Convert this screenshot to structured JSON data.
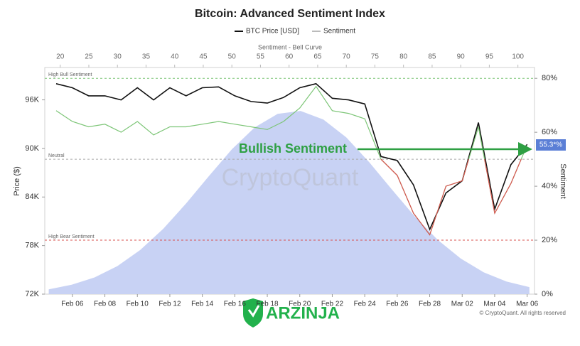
{
  "chart_data": {
    "type": "line",
    "title": "Bitcoin: Advanced Sentiment Index",
    "categories": [
      null,
      "Feb 06",
      null,
      "Feb 08",
      null,
      "Feb 10",
      null,
      "Feb 12",
      null,
      "Feb 14",
      null,
      "Feb 16",
      null,
      "Feb 18",
      null,
      "Feb 20",
      null,
      "Feb 22",
      null,
      "Feb 24",
      null,
      "Feb 26",
      null,
      "Feb 28",
      null,
      "Mar 02",
      null,
      "Mar 04",
      null,
      "Mar 06"
    ],
    "y_label": "Price ($)",
    "ylim": [
      72000,
      100000
    ],
    "yticks": [
      {
        "value": 72000,
        "label": "72K"
      },
      {
        "value": 78000,
        "label": "78K"
      },
      {
        "value": 84000,
        "label": "84K"
      },
      {
        "value": 90000,
        "label": "90K"
      },
      {
        "value": 96000,
        "label": "96K"
      }
    ],
    "y2_label": "Sentiment",
    "y2lim": [
      0,
      84
    ],
    "y2ticks": [
      {
        "value": 0,
        "label": "0%"
      },
      {
        "value": 20,
        "label": "20%"
      },
      {
        "value": 40,
        "label": "40%"
      },
      {
        "value": 60,
        "label": "60%"
      },
      {
        "value": 80,
        "label": "80%"
      }
    ],
    "series": [
      {
        "name": "BTC Price [USD]",
        "color": "#111111",
        "values": [
          98000,
          97500,
          96500,
          96500,
          96000,
          97500,
          96000,
          97500,
          96500,
          97500,
          97600,
          96500,
          95800,
          95600,
          96300,
          97500,
          98000,
          96200,
          96000,
          95500,
          89000,
          88500,
          85500,
          80000,
          84500,
          86000,
          93200,
          82500,
          88000,
          90500
        ]
      },
      {
        "name": "Sentiment",
        "color": "#7cc576",
        "legend_color": "#bbbbbb",
        "low_color": "#d9534f",
        "axis": "y2",
        "values": [
          68,
          64,
          62,
          63,
          60,
          64,
          59,
          62,
          62,
          63,
          64,
          63,
          62,
          61,
          64,
          69,
          77,
          68,
          67,
          65,
          50,
          44,
          30,
          22,
          40,
          42,
          62,
          30,
          41,
          55.3
        ],
        "value_labels": [
          null,
          null,
          null,
          null,
          null,
          null,
          null,
          null,
          null,
          null,
          null,
          null,
          null,
          null,
          null,
          null,
          null,
          null,
          null,
          null,
          null,
          null,
          null,
          null,
          null,
          null,
          null,
          null,
          null,
          "55.3*%"
        ]
      }
    ],
    "bell_curve": {
      "type": "area",
      "x_label": "Sentiment - Bell Curve",
      "color": "#c8d2f4",
      "axis": "y2",
      "xlim": [
        17.3,
        102.9
      ],
      "xticks": [
        20,
        25,
        30,
        35,
        40,
        45,
        50,
        55,
        60,
        65,
        70,
        75,
        80,
        85,
        90,
        95,
        100
      ],
      "x": [
        18,
        22,
        26,
        30,
        34,
        38,
        42,
        46,
        50,
        54,
        58,
        62,
        66,
        70,
        74,
        78,
        82,
        86,
        90,
        94,
        98,
        102
      ],
      "values": [
        1.8,
        3.5,
        6.2,
        10.4,
        16.4,
        24.2,
        33.6,
        43.8,
        53.7,
        61.8,
        66.8,
        67.9,
        64.7,
        58.1,
        48.9,
        38.7,
        28.7,
        20.1,
        13.2,
        8.1,
        4.7,
        2.6
      ]
    },
    "reference_lines": [
      {
        "label": "High Bull Sentiment",
        "value": 80,
        "color": "#7cc576"
      },
      {
        "label": "Neutral",
        "value": 50,
        "color": "#aaaaaa"
      },
      {
        "label": "High Bear Sentiment",
        "value": 20,
        "color": "#d9534f"
      }
    ],
    "annotations": [
      "Bullish Sentiment"
    ],
    "watermark": "CryptoQuant",
    "credit": "© CryptoQuant. All rights reserved",
    "overlay_logo": "ARZINJA"
  }
}
